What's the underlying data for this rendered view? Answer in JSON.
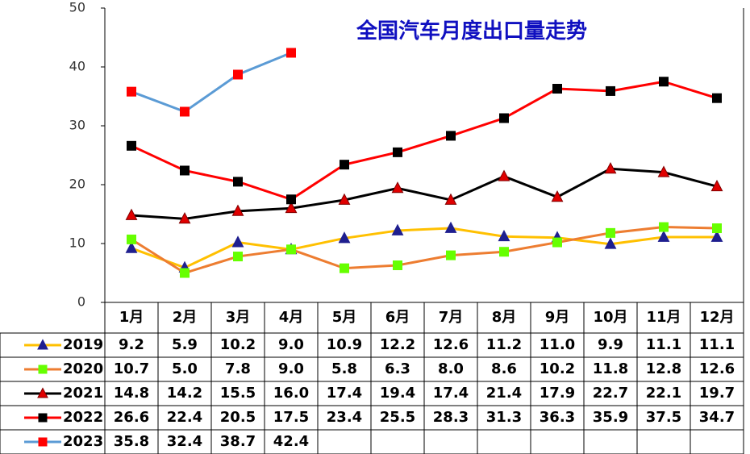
{
  "chart_data": {
    "type": "line",
    "title": "全国汽车月度出口量走势",
    "categories": [
      "1月",
      "2月",
      "3月",
      "4月",
      "5月",
      "6月",
      "7月",
      "8月",
      "9月",
      "10月",
      "11月",
      "12月"
    ],
    "ylim": [
      0,
      50
    ],
    "yticks": [
      0,
      10,
      20,
      30,
      40,
      50
    ],
    "grid": false,
    "series": [
      {
        "name": "2019",
        "color": "#FFC000",
        "marker": "triangle",
        "marker_color": "#1F1F8F",
        "values": [
          9.2,
          5.9,
          10.2,
          9.0,
          10.9,
          12.2,
          12.6,
          11.2,
          11.0,
          9.9,
          11.1,
          11.1
        ],
        "value_labels": [
          "9.2",
          "5.9",
          "10.2",
          "9.0",
          "10.9",
          "12.2",
          "12.6",
          "11.2",
          "11.0",
          "9.9",
          "11.1",
          "11.1"
        ]
      },
      {
        "name": "2020",
        "color": "#ED7D31",
        "marker": "square",
        "marker_color": "#66FF00",
        "values": [
          10.7,
          5.0,
          7.8,
          9.0,
          5.8,
          6.3,
          8.0,
          8.6,
          10.2,
          11.8,
          12.8,
          12.6
        ],
        "value_labels": [
          "10.7",
          "5.0",
          "7.8",
          "9.0",
          "5.8",
          "6.3",
          "8.0",
          "8.6",
          "10.2",
          "11.8",
          "12.8",
          "12.6"
        ]
      },
      {
        "name": "2021",
        "color": "#000000",
        "marker": "triangle",
        "marker_color": "#E00000",
        "values": [
          14.8,
          14.2,
          15.5,
          16.0,
          17.4,
          19.4,
          17.4,
          21.4,
          17.9,
          22.7,
          22.1,
          19.7
        ],
        "value_labels": [
          "14.8",
          "14.2",
          "15.5",
          "16.0",
          "17.4",
          "19.4",
          "17.4",
          "21.4",
          "17.9",
          "22.7",
          "22.1",
          "19.7"
        ]
      },
      {
        "name": "2022",
        "color": "#FF0000",
        "marker": "square",
        "marker_color": "#000000",
        "values": [
          26.6,
          22.4,
          20.5,
          17.5,
          23.4,
          25.5,
          28.3,
          31.3,
          36.3,
          35.9,
          37.5,
          34.7
        ],
        "value_labels": [
          "26.6",
          "22.4",
          "20.5",
          "17.5",
          "23.4",
          "25.5",
          "28.3",
          "31.3",
          "36.3",
          "35.9",
          "37.5",
          "34.7"
        ]
      },
      {
        "name": "2023",
        "color": "#5B9BD5",
        "marker": "square",
        "marker_color": "#FF0000",
        "values": [
          35.8,
          32.4,
          38.7,
          42.4,
          null,
          null,
          null,
          null,
          null,
          null,
          null,
          null
        ],
        "value_labels": [
          "35.8",
          "32.4",
          "38.7",
          "42.4",
          null,
          null,
          null,
          null,
          null,
          null,
          null,
          null
        ]
      }
    ]
  }
}
